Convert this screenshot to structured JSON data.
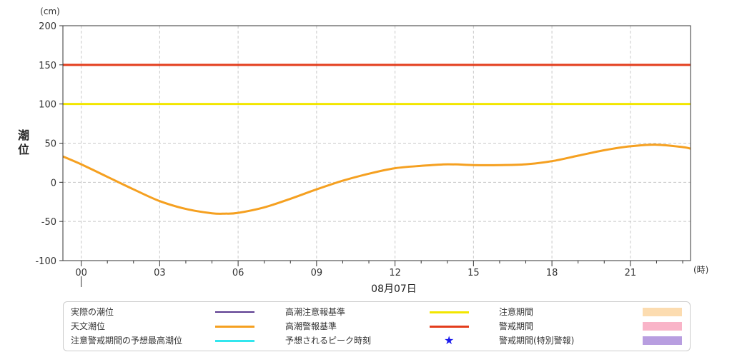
{
  "chart_data": {
    "type": "line",
    "ylabel": "潮位",
    "yunit": "(cm)",
    "xunit": "(時)",
    "date_label": "08月07日",
    "ylim": [
      -100,
      200
    ],
    "y_ticks": [
      "200",
      "150",
      "100",
      "50",
      "0",
      "-50",
      "-100"
    ],
    "xlim": [
      -0.7,
      23.3
    ],
    "x_ticks": [
      "00",
      "03",
      "06",
      "09",
      "12",
      "15",
      "18",
      "21"
    ],
    "grid": true,
    "series": [
      {
        "name": "天文潮位",
        "color": "#f5a020",
        "x": [
          -0.7,
          0,
          1,
          2,
          3,
          4,
          5,
          5.5,
          6,
          7,
          8,
          9,
          10,
          11,
          12,
          13,
          14,
          15,
          16,
          17,
          18,
          19,
          20,
          21,
          22,
          23,
          23.3
        ],
        "y": [
          33,
          23,
          7,
          -9,
          -24,
          -34,
          -39.5,
          -40,
          -39,
          -32,
          -21,
          -9,
          2,
          11,
          18,
          21,
          23,
          22,
          22,
          23,
          27,
          34,
          41,
          46,
          48,
          45,
          43
        ]
      },
      {
        "name": "高潮注意報基準",
        "color": "#f2e600",
        "value": 100
      },
      {
        "name": "高潮警報基準",
        "color": "#e33d1c",
        "value": 150
      }
    ]
  },
  "legend": {
    "col1": [
      {
        "label": "実際の潮位",
        "color": "#5b3a8f",
        "kind": "line-thin"
      },
      {
        "label": "天文潮位",
        "color": "#f5a020",
        "kind": "line"
      },
      {
        "label": "注意警戒期間の予想最高潮位",
        "color": "#33e6ee",
        "kind": "line"
      }
    ],
    "col2": [
      {
        "label": "高潮注意報基準",
        "color": "#f2e600",
        "kind": "line"
      },
      {
        "label": "高潮警報基準",
        "color": "#e33d1c",
        "kind": "line"
      },
      {
        "label": "予想されるピーク時刻",
        "color": "#1a1aee",
        "kind": "star",
        "icon": "★"
      }
    ],
    "col3": [
      {
        "label": "注意期間",
        "color": "#fcdcb0",
        "kind": "box"
      },
      {
        "label": "警戒期間",
        "color": "#f9b4c8",
        "kind": "box"
      },
      {
        "label": "警戒期間(特別警報)",
        "color": "#b89ee0",
        "kind": "box"
      }
    ]
  }
}
